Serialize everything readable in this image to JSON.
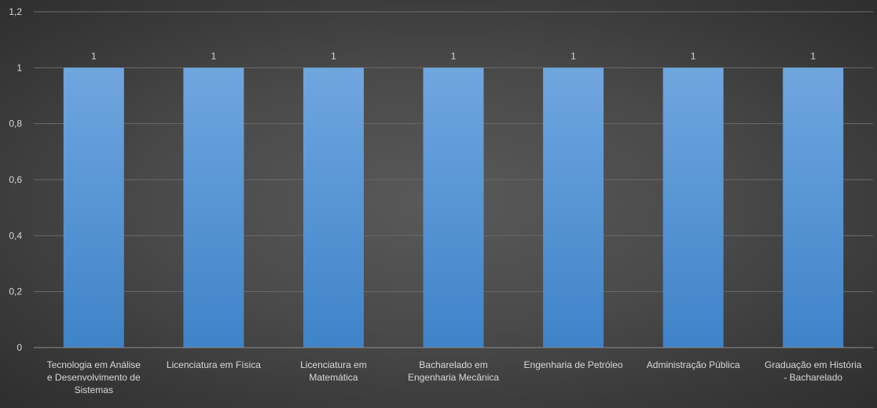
{
  "chart_data": {
    "type": "bar",
    "categories": [
      "Tecnologia em Análise e Desenvolvimento de Sistemas",
      "Licenciatura em Física",
      "Licenciatura em Matemática",
      "Bacharelado em Engenharia Mecânica",
      "Engenharia de Petróleo",
      "Administração Pública",
      "Graduação em História - Bacharelado"
    ],
    "category_label_lines": [
      [
        "Tecnologia em Análise",
        "e Desenvolvimento de",
        "Sistemas"
      ],
      [
        "Licenciatura em Física"
      ],
      [
        "Licenciatura em",
        "Matemática"
      ],
      [
        "Bacharelado em",
        "Engenharia Mecânica"
      ],
      [
        "Engenharia de Petróleo"
      ],
      [
        "Administração Pública"
      ],
      [
        "Graduação em História",
        "- Bacharelado"
      ]
    ],
    "values": [
      1,
      1,
      1,
      1,
      1,
      1,
      1
    ],
    "data_labels": [
      "1",
      "1",
      "1",
      "1",
      "1",
      "1",
      "1"
    ],
    "yticks": [
      0,
      0.2,
      0.4,
      0.6,
      0.8,
      1,
      1.2
    ],
    "ytick_labels": [
      "0",
      "0,2",
      "0,4",
      "0,6",
      "0,8",
      "1",
      "1,2"
    ],
    "ylim": [
      0,
      1.2
    ],
    "title": "",
    "xlabel": "",
    "ylabel": "",
    "grid": true,
    "legend": "none",
    "colors": {
      "bar_top": "#6fa6df",
      "bar_bottom": "#3f83c8",
      "gridline": "#6a6a6a",
      "axis_line": "#8c8c8c",
      "label_text": "#d9d9d9"
    }
  }
}
